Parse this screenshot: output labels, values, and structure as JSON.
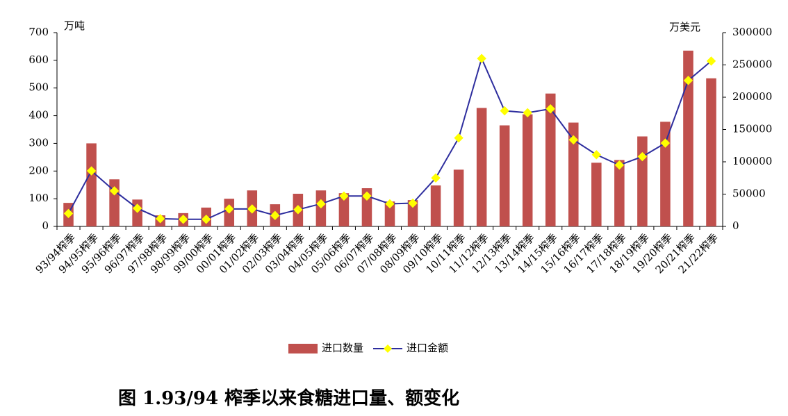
{
  "chart_data": {
    "type": "bar",
    "caption": "图 1.93/94 榨季以来食糖进口量、额变化",
    "y_label": "万吨",
    "y2_label": "万美元",
    "categories": [
      "93/94榨季",
      "94/95榨季",
      "95/96榨季",
      "96/97榨季",
      "97/98榨季",
      "98/99榨季",
      "99/00榨季",
      "00/01榨季",
      "01/02榨季",
      "02/03榨季",
      "03/04榨季",
      "04/05榨季",
      "05/06榨季",
      "06/07榨季",
      "07/08榨季",
      "08/09榨季",
      "09/10榨季",
      "10/11榨季",
      "11/12榨季",
      "12/13榨季",
      "13/14榨季",
      "14/15榨季",
      "15/16榨季",
      "16/17榨季",
      "17/18榨季",
      "18/19榨季",
      "19/20榨季",
      "20/21榨季",
      "21/22榨季"
    ],
    "series": [
      {
        "name": "进口数量",
        "type": "bar",
        "color": "#c0504d",
        "values": [
          85,
          300,
          170,
          97,
          40,
          48,
          68,
          100,
          130,
          80,
          118,
          130,
          120,
          138,
          90,
          95,
          148,
          205,
          428,
          365,
          405,
          480,
          375,
          230,
          240,
          325,
          378,
          635,
          535
        ]
      },
      {
        "name": "进口金额",
        "type": "line",
        "axis": "y2",
        "color": "#2e2e9e",
        "marker_color": "#ffff00",
        "values": [
          20000,
          86000,
          55000,
          28000,
          12000,
          11000,
          11000,
          27000,
          27000,
          17000,
          26000,
          35000,
          47000,
          47000,
          35000,
          36000,
          75000,
          137000,
          260000,
          179000,
          176000,
          182000,
          134000,
          111000,
          95000,
          108000,
          129000,
          226000,
          256000
        ]
      }
    ],
    "ylim": [
      0,
      700
    ],
    "yticks": [
      0,
      100,
      200,
      300,
      400,
      500,
      600,
      700
    ],
    "y2lim": [
      0,
      300000
    ],
    "y2ticks": [
      0,
      50000,
      100000,
      150000,
      200000,
      250000,
      300000
    ],
    "legend": "bottom"
  }
}
